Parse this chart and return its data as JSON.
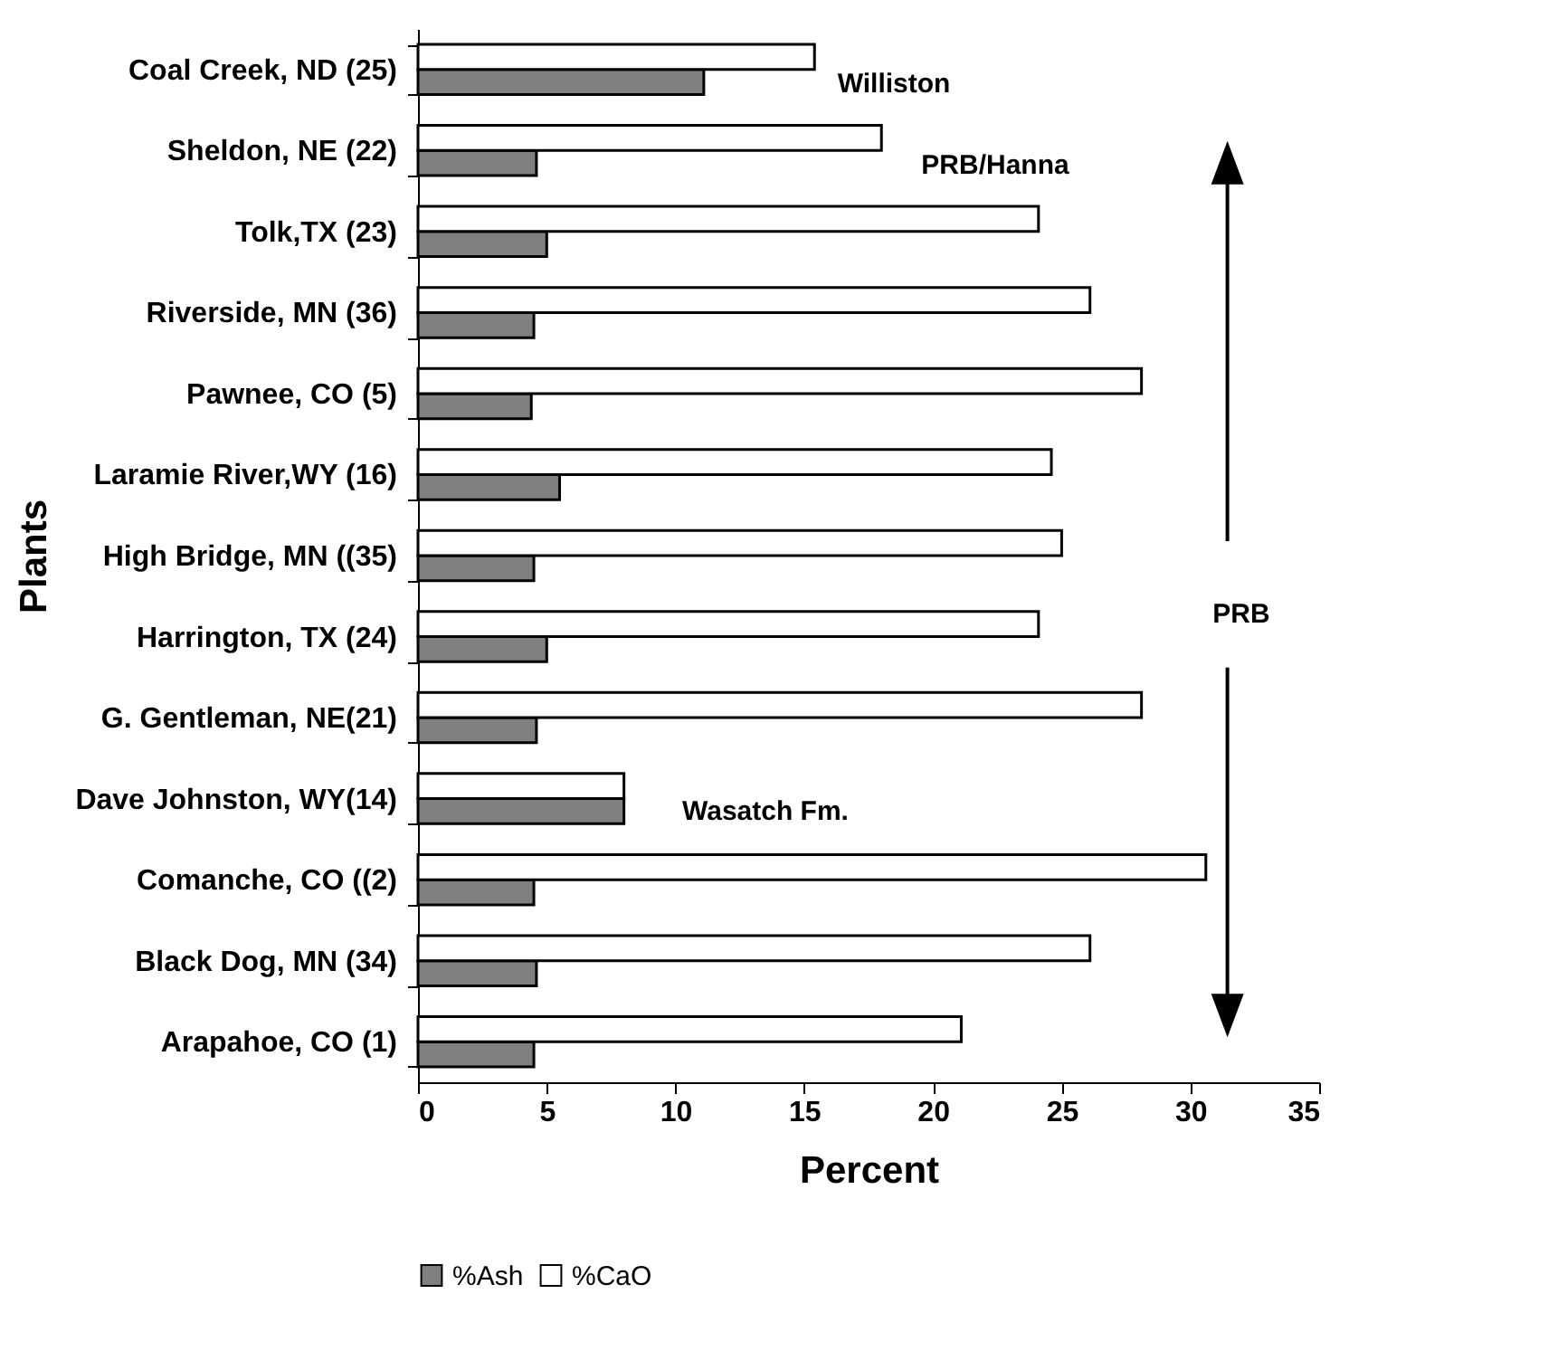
{
  "chart_data": {
    "type": "bar",
    "orientation": "horizontal",
    "xlabel": "Percent",
    "ylabel": "Plants",
    "categories": [
      "Coal Creek, ND (25)",
      "Sheldon, NE (22)",
      "Tolk,TX (23)",
      "Riverside, MN (36)",
      "Pawnee, CO (5)",
      "Laramie River,WY (16)",
      "High Bridge, MN ((35)",
      "Harrington, TX (24)",
      "G. Gentleman, NE(21)",
      "Dave Johnston, WY(14)",
      "Comanche, CO ((2)",
      "Black Dog, MN (34)",
      "Arapahoe, CO (1)"
    ],
    "series": [
      {
        "name": "%Ash",
        "color": "#808080",
        "values": [
          11.1,
          4.6,
          5.0,
          4.5,
          4.4,
          5.5,
          4.5,
          5.0,
          4.6,
          8.0,
          4.5,
          4.6,
          4.5
        ]
      },
      {
        "name": "%CaO",
        "color": "#ffffff",
        "values": [
          15.4,
          18.0,
          24.1,
          26.1,
          28.1,
          24.6,
          25.0,
          24.1,
          28.1,
          8.0,
          30.6,
          26.1,
          21.1
        ]
      }
    ],
    "xlim": [
      0,
      35
    ],
    "xticks": [
      0,
      5,
      10,
      15,
      20,
      25,
      30,
      35
    ],
    "legend": "bottom",
    "annotations": [
      "Williston",
      "PRB/Hanna",
      "Wasatch Fm.",
      "PRB"
    ]
  }
}
